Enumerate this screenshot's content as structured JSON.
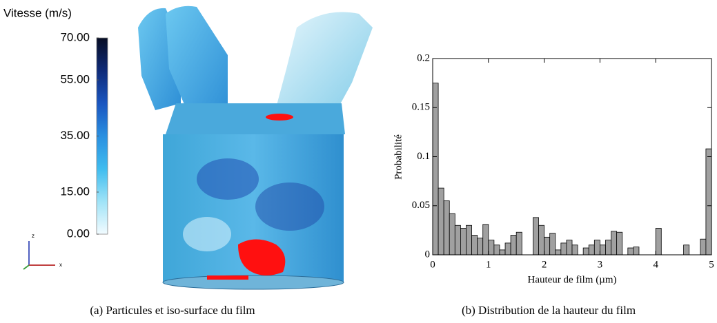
{
  "chart_data": [
    {
      "type": "colorbar",
      "title": "Vitesse (m/s)",
      "caption": "(a) Particules et iso-surface du film",
      "ylim": [
        0,
        70
      ],
      "yticks": [
        {
          "value": 70,
          "label": "70.00"
        },
        {
          "value": 55,
          "label": "55.00"
        },
        {
          "value": 35,
          "label": "35.00"
        },
        {
          "value": 15,
          "label": "15.00"
        },
        {
          "value": 0,
          "label": "0.00"
        }
      ],
      "colors": [
        "#f2fbff",
        "#9fe3f7",
        "#3fbcef",
        "#2a8fe0",
        "#1a55c0",
        "#0e2a78",
        "#070d24"
      ],
      "axis_labels": [
        "z",
        "x"
      ]
    },
    {
      "type": "histogram",
      "caption": "(b) Distribution de la hauteur du film",
      "xlabel": "Hauteur de film (µm)",
      "ylabel": "Probabilité",
      "color": "#a0a0a0",
      "bins": [
        0,
        0.1,
        0.2,
        0.3,
        0.4,
        0.5,
        0.6,
        0.7,
        0.8,
        0.9,
        1,
        1.1,
        1.2,
        1.3,
        1.4,
        1.5,
        1.6,
        1.7,
        1.8,
        1.9,
        2,
        2.1,
        2.2,
        2.3,
        2.4,
        2.5,
        2.6,
        2.7,
        2.8,
        2.9,
        3,
        3.1,
        3.2,
        3.3,
        3.4,
        3.5,
        3.6,
        3.7,
        3.8,
        3.9,
        4,
        4.1,
        4.2,
        4.3,
        4.4,
        4.5,
        4.6,
        4.7,
        4.8,
        4.9,
        5
      ],
      "values": [
        0.175,
        0.068,
        0.055,
        0.042,
        0.03,
        0.027,
        0.03,
        0.02,
        0.017,
        0.031,
        0.015,
        0.01,
        0.005,
        0.012,
        0.02,
        0.023,
        0,
        0,
        0.038,
        0.03,
        0.018,
        0.022,
        0.005,
        0.012,
        0.015,
        0.01,
        0,
        0.007,
        0.01,
        0.015,
        0.01,
        0.015,
        0.024,
        0.023,
        0,
        0.007,
        0.008,
        0,
        0,
        0,
        0.027,
        0,
        0,
        0,
        0,
        0.01,
        0,
        0,
        0.016,
        0.108
      ],
      "xlim": [
        0,
        5
      ],
      "ylim": [
        0,
        0.2
      ],
      "xticks": [
        0,
        1,
        2,
        3,
        4,
        5
      ],
      "yticks": [
        0,
        0.05,
        0.1,
        0.15,
        0.2
      ]
    }
  ]
}
